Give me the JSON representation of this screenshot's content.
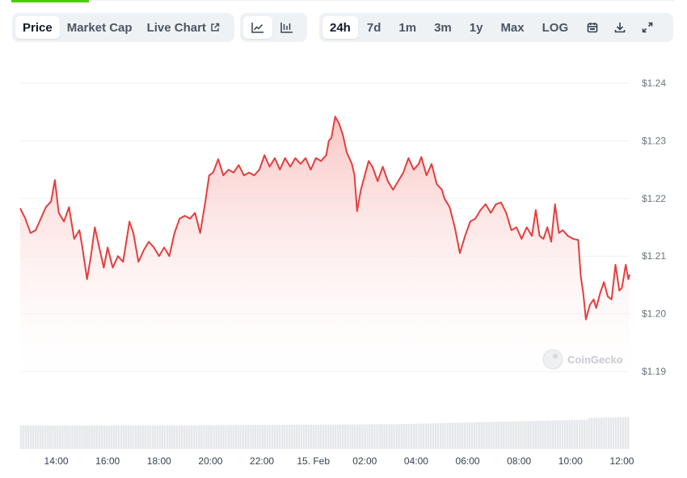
{
  "tabs": {
    "price": "Price",
    "market_cap": "Market Cap",
    "live_chart": "Live Chart"
  },
  "chart_type_buttons": [
    "line-chart-icon",
    "candlestick-icon"
  ],
  "ranges": [
    "24h",
    "7d",
    "1m",
    "3m",
    "1y",
    "Max",
    "LOG"
  ],
  "active_range": "24h",
  "tool_icons": [
    "calendar-icon",
    "download-icon",
    "expand-icon"
  ],
  "watermark": "CoinGecko",
  "colors": {
    "line": "#e53e3e",
    "fill_top": "#f8c3c1",
    "volume": "#e5e7eb",
    "active_accent": "#4bcc00"
  },
  "chart_data": {
    "type": "area",
    "currency": "$",
    "ylim": [
      1.19,
      1.24
    ],
    "yticks": [
      "$1.24",
      "$1.23",
      "$1.22",
      "$1.21",
      "$1.20",
      "$1.19"
    ],
    "ytick_values": [
      1.24,
      1.23,
      1.22,
      1.21,
      1.2,
      1.19
    ],
    "xticks": [
      "14:00",
      "16:00",
      "18:00",
      "20:00",
      "22:00",
      "15. Feb",
      "02:00",
      "04:00",
      "06:00",
      "08:00",
      "10:00",
      "12:00"
    ],
    "x_start_hour": 12.6,
    "x_end_hour": 36.3,
    "grid": true,
    "legend": "none",
    "series": [
      {
        "points": [
          [
            12.6,
            1.2183
          ],
          [
            12.8,
            1.2165
          ],
          [
            13.0,
            1.214
          ],
          [
            13.2,
            1.2145
          ],
          [
            13.4,
            1.2165
          ],
          [
            13.6,
            1.2185
          ],
          [
            13.8,
            1.2195
          ],
          [
            13.95,
            1.2232
          ],
          [
            14.1,
            1.2175
          ],
          [
            14.3,
            1.216
          ],
          [
            14.5,
            1.2185
          ],
          [
            14.7,
            1.213
          ],
          [
            14.9,
            1.2145
          ],
          [
            15.0,
            1.212
          ],
          [
            15.2,
            1.206
          ],
          [
            15.35,
            1.21
          ],
          [
            15.5,
            1.215
          ],
          [
            15.7,
            1.211
          ],
          [
            15.85,
            1.208
          ],
          [
            16.0,
            1.2115
          ],
          [
            16.2,
            1.208
          ],
          [
            16.4,
            1.21
          ],
          [
            16.6,
            1.209
          ],
          [
            16.85,
            1.216
          ],
          [
            17.0,
            1.214
          ],
          [
            17.2,
            1.209
          ],
          [
            17.4,
            1.211
          ],
          [
            17.6,
            1.2125
          ],
          [
            17.8,
            1.2115
          ],
          [
            18.0,
            1.21
          ],
          [
            18.2,
            1.2115
          ],
          [
            18.4,
            1.21
          ],
          [
            18.6,
            1.214
          ],
          [
            18.8,
            1.2165
          ],
          [
            19.0,
            1.217
          ],
          [
            19.2,
            1.2165
          ],
          [
            19.4,
            1.2175
          ],
          [
            19.6,
            1.214
          ],
          [
            19.8,
            1.2195
          ],
          [
            19.95,
            1.224
          ],
          [
            20.1,
            1.2245
          ],
          [
            20.3,
            1.2268
          ],
          [
            20.5,
            1.224
          ],
          [
            20.7,
            1.225
          ],
          [
            20.9,
            1.2245
          ],
          [
            21.1,
            1.2258
          ],
          [
            21.3,
            1.224
          ],
          [
            21.5,
            1.2245
          ],
          [
            21.7,
            1.224
          ],
          [
            21.9,
            1.225
          ],
          [
            22.1,
            1.2275
          ],
          [
            22.3,
            1.2255
          ],
          [
            22.5,
            1.227
          ],
          [
            22.7,
            1.225
          ],
          [
            22.9,
            1.227
          ],
          [
            23.1,
            1.2255
          ],
          [
            23.3,
            1.227
          ],
          [
            23.5,
            1.226
          ],
          [
            23.7,
            1.227
          ],
          [
            23.9,
            1.225
          ],
          [
            24.1,
            1.227
          ],
          [
            24.3,
            1.2265
          ],
          [
            24.5,
            1.2275
          ],
          [
            24.6,
            1.23
          ],
          [
            24.7,
            1.2305
          ],
          [
            24.85,
            1.2342
          ],
          [
            25.0,
            1.233
          ],
          [
            25.15,
            1.231
          ],
          [
            25.3,
            1.228
          ],
          [
            25.5,
            1.226
          ],
          [
            25.6,
            1.224
          ],
          [
            25.7,
            1.2178
          ],
          [
            25.85,
            1.2215
          ],
          [
            26.0,
            1.224
          ],
          [
            26.15,
            1.2265
          ],
          [
            26.3,
            1.2255
          ],
          [
            26.5,
            1.223
          ],
          [
            26.7,
            1.2255
          ],
          [
            26.9,
            1.223
          ],
          [
            27.1,
            1.2215
          ],
          [
            27.3,
            1.223
          ],
          [
            27.5,
            1.2245
          ],
          [
            27.7,
            1.227
          ],
          [
            27.9,
            1.225
          ],
          [
            28.1,
            1.226
          ],
          [
            28.2,
            1.2272
          ],
          [
            28.4,
            1.224
          ],
          [
            28.6,
            1.226
          ],
          [
            28.8,
            1.2225
          ],
          [
            29.0,
            1.2215
          ],
          [
            29.1,
            1.22
          ],
          [
            29.3,
            1.2185
          ],
          [
            29.5,
            1.215
          ],
          [
            29.7,
            1.2105
          ],
          [
            29.9,
            1.2135
          ],
          [
            30.1,
            1.216
          ],
          [
            30.3,
            1.2165
          ],
          [
            30.5,
            1.218
          ],
          [
            30.7,
            1.219
          ],
          [
            30.9,
            1.2175
          ],
          [
            31.1,
            1.219
          ],
          [
            31.3,
            1.2193
          ],
          [
            31.5,
            1.2175
          ],
          [
            31.7,
            1.2145
          ],
          [
            31.9,
            1.215
          ],
          [
            32.1,
            1.213
          ],
          [
            32.3,
            1.215
          ],
          [
            32.5,
            1.2135
          ],
          [
            32.65,
            1.218
          ],
          [
            32.8,
            1.2135
          ],
          [
            32.95,
            1.213
          ],
          [
            33.1,
            1.215
          ],
          [
            33.25,
            1.2125
          ],
          [
            33.4,
            1.219
          ],
          [
            33.55,
            1.214
          ],
          [
            33.7,
            1.2145
          ],
          [
            33.9,
            1.2135
          ],
          [
            34.1,
            1.213
          ],
          [
            34.3,
            1.2128
          ],
          [
            34.4,
            1.2065
          ],
          [
            34.5,
            1.2035
          ],
          [
            34.6,
            1.199
          ],
          [
            34.75,
            1.2015
          ],
          [
            34.9,
            1.2025
          ],
          [
            35.0,
            1.201
          ],
          [
            35.15,
            1.2035
          ],
          [
            35.3,
            1.2055
          ],
          [
            35.45,
            1.203
          ],
          [
            35.6,
            1.2025
          ],
          [
            35.75,
            1.2085
          ],
          [
            35.9,
            1.204
          ],
          [
            36.0,
            1.2045
          ],
          [
            36.15,
            1.2085
          ],
          [
            36.25,
            1.206
          ],
          [
            36.3,
            1.2068
          ]
        ]
      }
    ]
  }
}
